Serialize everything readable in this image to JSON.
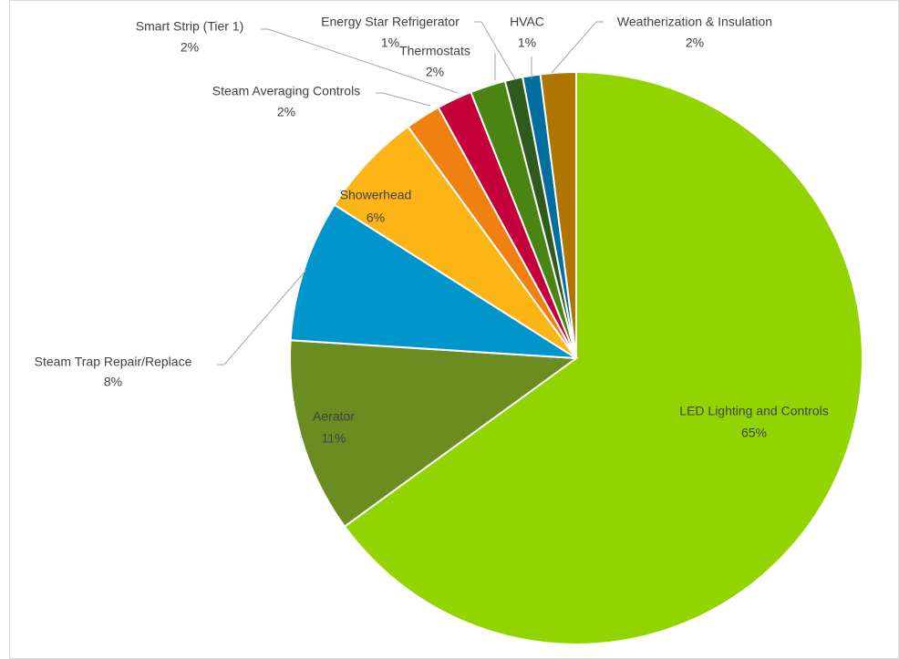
{
  "chart_data": {
    "type": "pie",
    "categories": [
      "LED Lighting and Controls",
      "Aerator",
      "Steam Trap Repair/Replace",
      "Showerhead",
      "Steam Averaging Controls",
      "Smart Strip (Tier 1)",
      "Thermostats",
      "Energy Star Refrigerator",
      "HVAC",
      "Weatherization & Insulation"
    ],
    "values": [
      65,
      11,
      8,
      6,
      2,
      2,
      2,
      1,
      1,
      2
    ],
    "value_labels": [
      "65%",
      "11%",
      "8%",
      "6%",
      "2%",
      "2%",
      "2%",
      "1%",
      "1%",
      "2%"
    ],
    "colors": [
      "#92d400",
      "#6a8c20",
      "#0096cc",
      "#fdb515",
      "#f0800f",
      "#c4003c",
      "#4a8412",
      "#2e5a1e",
      "#006e9e",
      "#ae7600"
    ]
  }
}
